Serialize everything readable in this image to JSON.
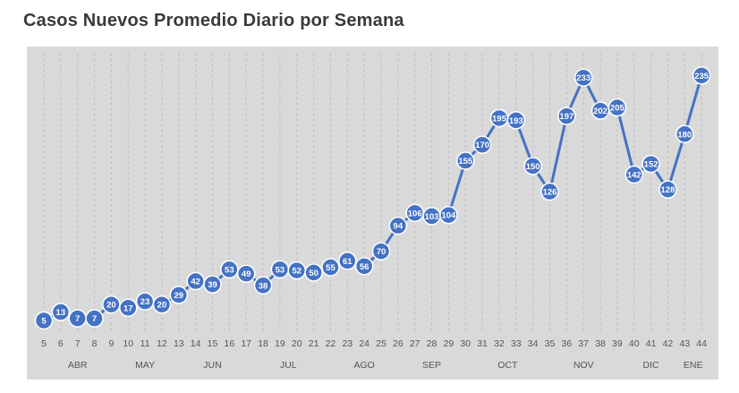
{
  "chart_data": {
    "type": "line",
    "title": "Casos Nuevos Promedio Diario por Semana",
    "x": [
      5,
      6,
      7,
      8,
      9,
      10,
      11,
      12,
      13,
      14,
      15,
      16,
      17,
      18,
      19,
      20,
      21,
      22,
      23,
      24,
      25,
      26,
      27,
      28,
      29,
      30,
      31,
      32,
      33,
      34,
      35,
      36,
      37,
      38,
      39,
      40,
      41,
      42,
      43,
      44
    ],
    "series": [
      {
        "values": [
          5,
          13,
          7,
          7,
          20,
          17,
          23,
          20,
          29,
          42,
          39,
          53,
          49,
          38,
          53,
          52,
          50,
          55,
          61,
          56,
          70,
          94,
          106,
          103,
          104,
          155,
          170,
          195,
          193,
          150,
          126,
          197,
          233,
          202,
          205,
          142,
          152,
          128,
          180,
          235
        ]
      }
    ],
    "month_labels": [
      {
        "label": "ABR",
        "at_week": 7
      },
      {
        "label": "MAY",
        "at_week": 11
      },
      {
        "label": "JUN",
        "at_week": 15
      },
      {
        "label": "JUL",
        "at_week": 19.5
      },
      {
        "label": "AGO",
        "at_week": 24
      },
      {
        "label": "SEP",
        "at_week": 28
      },
      {
        "label": "OCT",
        "at_week": 32.5
      },
      {
        "label": "NOV",
        "at_week": 37
      },
      {
        "label": "DIC",
        "at_week": 41
      },
      {
        "label": "ENE",
        "at_week": 43.5
      }
    ],
    "ylim": [
      0,
      250
    ],
    "grid": "vertical-dashed",
    "xlabel": "",
    "ylabel": "",
    "colors": {
      "line": "#4472c4",
      "background": "#d9d9d9",
      "title": "#3a3a3a"
    }
  }
}
